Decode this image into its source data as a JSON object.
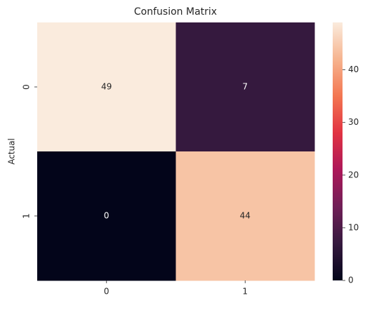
{
  "chart_data": {
    "type": "heatmap",
    "title": "Confusion Matrix",
    "y_label": "Actual",
    "x_categories": [
      "0",
      "1"
    ],
    "y_categories": [
      "0",
      "1"
    ],
    "values": [
      [
        49,
        7
      ],
      [
        0,
        44
      ]
    ],
    "colormap": "rocket",
    "clim": [
      0,
      49
    ],
    "colorbar_ticks": [
      0,
      10,
      20,
      30,
      40
    ]
  }
}
